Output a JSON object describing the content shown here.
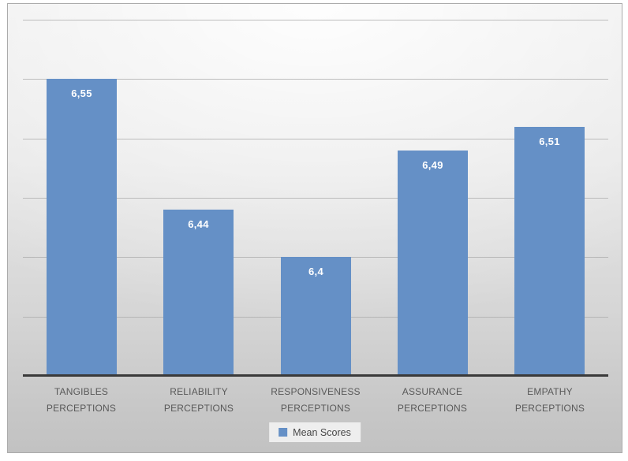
{
  "chart_data": {
    "type": "bar",
    "title": "",
    "categories": [
      "TANGIBLES PERCEPTIONS",
      "RELIABILITY PERCEPTIONS",
      "RESPONSIVENESS PERCEPTIONS",
      "ASSURANCE PERCEPTIONS",
      "EMPATHY PERCEPTIONS"
    ],
    "series": [
      {
        "name": "Mean Scores",
        "values": [
          6.55,
          6.44,
          6.4,
          6.49,
          6.51
        ],
        "value_labels": [
          "6,55",
          "6,44",
          "6,4",
          "6,49",
          "6,51"
        ],
        "color": "#6590c6"
      }
    ],
    "xlabel": "",
    "ylabel": "",
    "ylim": [
      6.3,
      6.6
    ],
    "gridline_step": 0.05,
    "grid": true,
    "y_axis_tick_labels_visible": false,
    "data_labels_inside_bars": true,
    "decimal_separator": ",",
    "legend_position": "bottom"
  },
  "legend": {
    "label": "Mean Scores"
  },
  "colors": {
    "bar": "#6590c6",
    "gridline": "#a9a9a9",
    "axis_line": "#3a3a3a",
    "category_label_text": "#595959",
    "value_label_text": "#ffffff",
    "legend_background": "#eeeeee",
    "chart_border": "#ababab",
    "background_top": "#fafafa",
    "background_bottom": "#c2c2c2"
  }
}
